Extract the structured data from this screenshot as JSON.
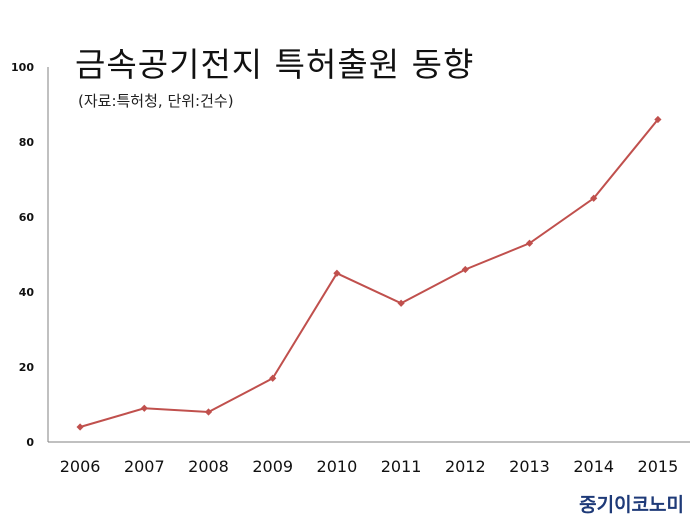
{
  "title": "금속공기전지 특허출원 동향",
  "subtitle": "(자료:특허청, 단위:건수)",
  "logo_text": "중기이코노미",
  "colors": {
    "line": "#c0504d",
    "axis": "#808080",
    "logo": "#1e3a78"
  },
  "chart_data": {
    "type": "line",
    "categories": [
      "2006",
      "2007",
      "2008",
      "2009",
      "2010",
      "2011",
      "2012",
      "2013",
      "2014",
      "2015"
    ],
    "series": [
      {
        "values": [
          4,
          9,
          8,
          17,
          45,
          37,
          46,
          53,
          65,
          86
        ]
      }
    ],
    "ylim": [
      0,
      100
    ],
    "yticks": [
      "0",
      "20",
      "40",
      "60",
      "80",
      "100"
    ],
    "grid": false,
    "marker": "diamond"
  }
}
